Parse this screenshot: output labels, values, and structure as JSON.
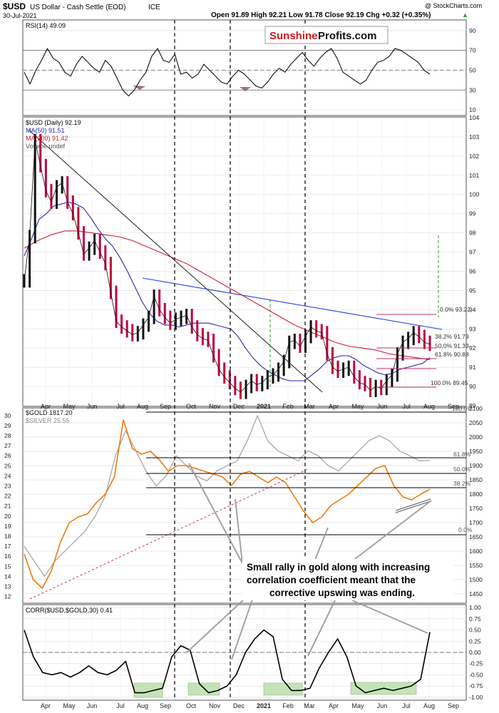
{
  "header": {
    "symbol": "$USD",
    "name": "US Dollar - Cash Settle (EOD)",
    "exchange": "ICE",
    "watermark": "@ StockCharts.com",
    "date": "30-Jul-2021",
    "quote": "Open 91.89  High 92.21  Low 91.78  Close 92.19  Chg +0.32 (+0.35%)",
    "change_arrow": "▲"
  },
  "logo": {
    "part1": "Sunshine",
    "part2": "Profits.com"
  },
  "colors": {
    "usd_price": "#111111",
    "usd_down": "#c00040",
    "ma50": "#2a2aa8",
    "ma200": "#cc1f3a",
    "trendline_blue": "#2244dd",
    "gold": "#ef7a10",
    "silver": "#a8a8a8",
    "fib": "#c0306a",
    "green_dash": "#2a9a3a",
    "shade_green": "#bfe0b0",
    "logo_red": "#d41a1a"
  },
  "chart_data": [
    {
      "type": "line",
      "panel": "rsi",
      "title": "RSI(14) 49.09",
      "ylim": [
        5,
        100
      ],
      "yticks": [
        10,
        30,
        50,
        70,
        90
      ],
      "reference_lines": [
        70,
        50,
        30
      ],
      "series": [
        {
          "name": "RSI(14)",
          "values": [
            48,
            36,
            50,
            60,
            72,
            62,
            58,
            48,
            44,
            56,
            64,
            58,
            52,
            48,
            60,
            54,
            42,
            30,
            24,
            30,
            40,
            48,
            64,
            72,
            60,
            58,
            66,
            46,
            48,
            42,
            46,
            56,
            50,
            44,
            38,
            36,
            44,
            50,
            46,
            40,
            34,
            32,
            38,
            46,
            52,
            48,
            56,
            62,
            68,
            60,
            54,
            62,
            68,
            72,
            62,
            48,
            44,
            40,
            36,
            40,
            50,
            58,
            60,
            64,
            72,
            70,
            66,
            62,
            58,
            50,
            46
          ]
        }
      ]
    },
    {
      "type": "line",
      "panel": "usd",
      "title": "$USD (Daily) 92.19",
      "ylim": [
        89,
        104
      ],
      "yticks": [
        89,
        90,
        91,
        92,
        93,
        94,
        95,
        96,
        97,
        98,
        99,
        100,
        101,
        102,
        103,
        104
      ],
      "legend": [
        "MA(50) 91.51",
        "MA(200) 91.42",
        "Volume undef"
      ],
      "fib_labels": [
        "0.0% 93.22",
        "38.2% 91.79",
        "50.0% 91.33",
        "61.8% 90.88",
        "100.0% 89.45"
      ],
      "fib_levels": [
        93.22,
        91.79,
        91.33,
        90.88,
        89.45
      ],
      "series": [
        {
          "name": "$USD",
          "values": [
            95.5,
            97.8,
            102.8,
            101.5,
            100.2,
            99.6,
            100.4,
            100.6,
            99.6,
            99.0,
            98.0,
            96.9,
            97.2,
            97.6,
            97.0,
            96.4,
            94.9,
            93.4,
            93.1,
            92.9,
            92.7,
            92.8,
            93.2,
            93.6,
            94.7,
            94.0,
            93.6,
            93.3,
            93.5,
            93.6,
            93.7,
            93.1,
            92.7,
            92.5,
            92.4,
            91.6,
            90.9,
            90.5,
            90.2,
            89.9,
            89.7,
            90.0,
            90.3,
            90.1,
            90.2,
            90.5,
            90.6,
            90.9,
            91.3,
            92.3,
            92.4,
            92.1,
            92.6,
            93.1,
            92.9,
            92.8,
            91.7,
            91.0,
            90.8,
            90.9,
            91.0,
            90.5,
            90.2,
            90.1,
            89.8,
            90.0,
            89.9,
            90.3,
            90.6,
            91.7,
            92.3,
            92.5,
            92.8,
            92.6,
            92.3,
            92.2
          ]
        },
        {
          "name": "MA(50)",
          "values": [
            96.8,
            97.7,
            98.7,
            99.0,
            99.4,
            99.5,
            99.6,
            99.5,
            99.3,
            98.8,
            98.2,
            97.7,
            97.3,
            96.7,
            96.0,
            95.2,
            94.4,
            93.8,
            93.4,
            93.2,
            93.2,
            93.1,
            93.2,
            93.3,
            93.3,
            93.3,
            93.2,
            93.1,
            93.0,
            92.6,
            92.0,
            91.5,
            91.1,
            90.8,
            90.6,
            90.4,
            90.3,
            90.3,
            90.3,
            90.6,
            90.9,
            91.3,
            91.5,
            91.6,
            91.6,
            91.4,
            91.1,
            90.9,
            90.7,
            90.6,
            90.7,
            90.9,
            91.0,
            91.1,
            91.2,
            91.5
          ]
        },
        {
          "name": "MA(200)",
          "values": [
            97.2,
            97.6,
            97.9,
            98.1,
            98.1,
            98.0,
            97.9,
            97.8,
            97.6,
            97.3,
            97.0,
            96.7,
            96.4,
            96.0,
            95.6,
            95.2,
            94.8,
            94.4,
            94.0,
            93.6,
            93.2,
            92.9,
            92.6,
            92.3,
            92.1,
            92.0,
            91.9,
            91.7,
            91.6,
            91.5,
            91.4
          ]
        }
      ]
    },
    {
      "type": "line",
      "panel": "gold",
      "title": "$GOLD 1817.20",
      "ylim": [
        1420,
        2100
      ],
      "yticks": [
        1450,
        1500,
        1550,
        1600,
        1650,
        1700,
        1750,
        1800,
        1850,
        1900,
        1950,
        2000,
        2050,
        2100
      ],
      "left_yticks": [
        12,
        13,
        14,
        15,
        16,
        17,
        18,
        19,
        20,
        21,
        22,
        23,
        24,
        25,
        26,
        27,
        28,
        29,
        30
      ],
      "fib_labels": [
        "100.0%",
        "61.8%",
        "50.0%",
        "38.2%",
        "0.0%"
      ],
      "series": [
        {
          "name": "$GOLD 1817.20",
          "values": [
            1590,
            1500,
            1470,
            1530,
            1630,
            1700,
            1720,
            1730,
            1770,
            1800,
            1860,
            2060,
            1960,
            1940,
            1950,
            1920,
            1880,
            1900,
            1900,
            1890,
            1880,
            1870,
            1860,
            1830,
            1870,
            1880,
            1860,
            1840,
            1860,
            1840,
            1790,
            1740,
            1700,
            1720,
            1760,
            1780,
            1800,
            1830,
            1860,
            1890,
            1900,
            1830,
            1790,
            1780,
            1800,
            1817
          ]
        },
        {
          "name": "$SILVER 25.55",
          "values": [
            17.0,
            15.5,
            14.0,
            15.5,
            16.5,
            17.5,
            18.5,
            20.0,
            22.0,
            26.0,
            28.5,
            26.5,
            24.5,
            23.0,
            24.0,
            26.0,
            25.0,
            24.0,
            23.5,
            24.5,
            25.0,
            25.5,
            27.5,
            30.0,
            27.5,
            26.5,
            26.0,
            25.5,
            26.5,
            26.0,
            25.0,
            24.5,
            25.5,
            26.5,
            27.5,
            28.0,
            27.5,
            26.5,
            26.0,
            25.5,
            25.55
          ]
        }
      ]
    },
    {
      "type": "line",
      "panel": "correlation",
      "title": "CORR($USD,$GOLD,30) 0.41",
      "ylim": [
        -1.05,
        1.05
      ],
      "yticks": [
        -1.0,
        -0.75,
        -0.5,
        -0.25,
        0.0,
        0.25,
        0.5,
        0.75,
        1.0
      ],
      "series": [
        {
          "name": "CORR($USD,$GOLD,30)",
          "values": [
            0.5,
            -0.1,
            -0.45,
            -0.5,
            -0.45,
            -0.55,
            -0.45,
            -0.3,
            -0.45,
            -0.5,
            -0.4,
            -0.2,
            -0.9,
            -0.9,
            -0.85,
            -0.8,
            -0.1,
            0.15,
            0.05,
            -0.7,
            -0.9,
            -0.85,
            -0.75,
            -0.5,
            0.0,
            0.3,
            0.5,
            0.35,
            -0.6,
            -0.85,
            -0.85,
            -0.8,
            -0.35,
            0.0,
            0.3,
            -0.1,
            -0.75,
            -0.9,
            -0.85,
            -0.8,
            -0.85,
            -0.8,
            -0.75,
            -0.6,
            0.45
          ]
        }
      ]
    }
  ],
  "xaxis": {
    "labels": [
      "Apr",
      "May",
      "Jun",
      "Jul",
      "Aug",
      "Sep",
      "Oct",
      "Nov",
      "Dec",
      "2021",
      "Feb",
      "Mar",
      "Apr",
      "May",
      "Jun",
      "Jul",
      "Aug",
      "Sep"
    ]
  },
  "annotation": {
    "line1": "Small rally in gold along with increasing",
    "line2": "correlation coefficient meant that the",
    "line3": "corrective upswing was ending."
  },
  "panel_titles": {
    "rsi": "RSI(14) 49.09",
    "usd": "$USD (Daily) 92.19",
    "ma50": "MA(50) 91.51",
    "ma200": "MA(200) 91.42",
    "vol": "Volume undef",
    "gold": "$GOLD 1817.20",
    "silver": "$SILVER 25.55",
    "corr": "CORR($USD,$GOLD,30) 0.41"
  }
}
